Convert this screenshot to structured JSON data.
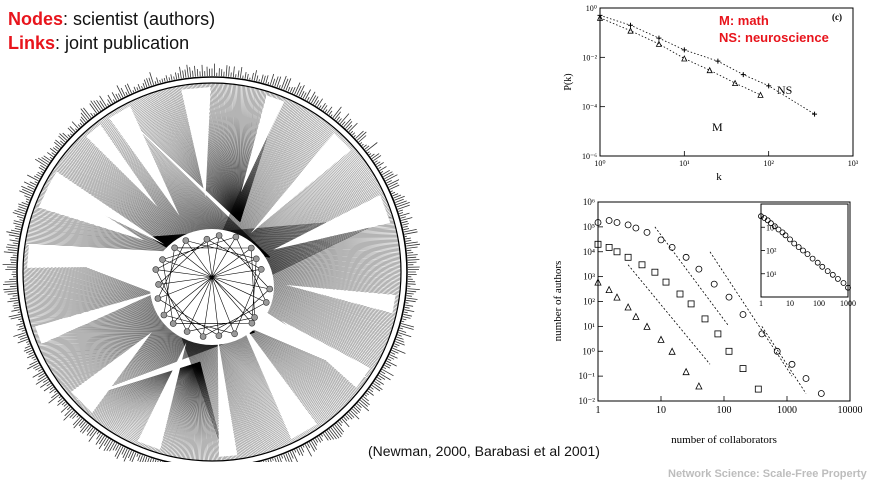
{
  "legend": {
    "nodes_term": "Nodes",
    "nodes_text": ": scientist (authors)",
    "links_term": "Links",
    "links_text": ": joint publication"
  },
  "citation": "(Newman, 2000, Barabasi et al 2001)",
  "footer": "Network Science: Scale-Free Property",
  "colors": {
    "accent": "#e8141c",
    "footer": "#bdbdbd",
    "ink": "#000000"
  },
  "chart_data": [
    {
      "type": "scatter",
      "panel_label": "(c)",
      "xlabel": "k",
      "ylabel": "P(k)",
      "x_scale": "log",
      "y_scale": "log",
      "xlim": [
        1,
        1000
      ],
      "ylim": [
        1e-06,
        1
      ],
      "x_ticks": [
        "10⁰",
        "10¹",
        "10²",
        "10³"
      ],
      "y_ticks": [
        "10⁰",
        "10⁻²",
        "10⁻⁴",
        "10⁻⁶"
      ],
      "legend_lines": [
        "M: math",
        "NS: neuroscience"
      ],
      "annotations": [
        "NS",
        "M"
      ],
      "series": [
        {
          "name": "M",
          "marker": "triangle",
          "x": [
            1,
            2.3,
            5,
            10,
            20,
            40,
            80
          ],
          "y": [
            0.4,
            0.12,
            0.035,
            0.009,
            0.003,
            0.0009,
            0.0003
          ]
        },
        {
          "name": "NS",
          "marker": "plus",
          "x": [
            1,
            2.3,
            5,
            10,
            25,
            50,
            100,
            350
          ],
          "y": [
            0.5,
            0.2,
            0.06,
            0.02,
            0.007,
            0.002,
            0.0007,
            5e-05
          ]
        }
      ]
    },
    {
      "type": "scatter",
      "xlabel": "number of collaborators",
      "ylabel": "number of authors",
      "x_scale": "log",
      "y_scale": "log",
      "xlim": [
        1,
        10000
      ],
      "ylim": [
        0.01,
        1000000
      ],
      "x_ticks": [
        "1",
        "10",
        "100",
        "1000",
        "10000"
      ],
      "y_ticks": [
        "10⁶",
        "10⁵",
        "10⁴",
        "10³",
        "10²",
        "10¹",
        "10⁰",
        "10⁻¹",
        "10⁻²"
      ],
      "series": [
        {
          "marker": "circle",
          "x": [
            1,
            1.5,
            2,
            3,
            4,
            6,
            10,
            15,
            25,
            40,
            70,
            120,
            200,
            400,
            700,
            1200,
            2000,
            3500
          ],
          "y": [
            150000,
            180000,
            150000,
            120000,
            90000,
            60000,
            30000,
            15000,
            6000,
            2000,
            500,
            150,
            30,
            5,
            1,
            0.3,
            0.08,
            0.02
          ]
        },
        {
          "marker": "square",
          "x": [
            1,
            1.5,
            2,
            3,
            5,
            8,
            12,
            20,
            30,
            50,
            80,
            120,
            200,
            350
          ],
          "y": [
            20000,
            15000,
            10000,
            6000,
            3000,
            1500,
            600,
            200,
            80,
            20,
            5,
            1,
            0.2,
            0.03
          ]
        },
        {
          "marker": "triangle",
          "x": [
            1,
            1.5,
            2,
            3,
            4,
            6,
            10,
            15,
            25,
            40
          ],
          "y": [
            600,
            300,
            150,
            60,
            25,
            10,
            3,
            1,
            0.15,
            0.04
          ]
        }
      ],
      "inset": {
        "x_ticks": [
          "1",
          "10",
          "100",
          "1000"
        ],
        "y_ticks": [
          "10³",
          "10²",
          "10¹"
        ],
        "xlim": [
          1,
          1000
        ],
        "ylim": [
          1,
          10000
        ],
        "series": [
          {
            "marker": "circle",
            "x": [
              1,
              1.3,
              1.7,
              2.2,
              3,
              4,
              5.5,
              7,
              10,
              14,
              20,
              28,
              40,
              60,
              90,
              130,
              200,
              300,
              450,
              700,
              1000
            ],
            "y": [
              3000,
              2500,
              2000,
              1500,
              1100,
              800,
              600,
              450,
              300,
              200,
              140,
              100,
              70,
              45,
              30,
              20,
              13,
              9,
              6,
              4,
              2.5
            ]
          }
        ]
      }
    }
  ]
}
